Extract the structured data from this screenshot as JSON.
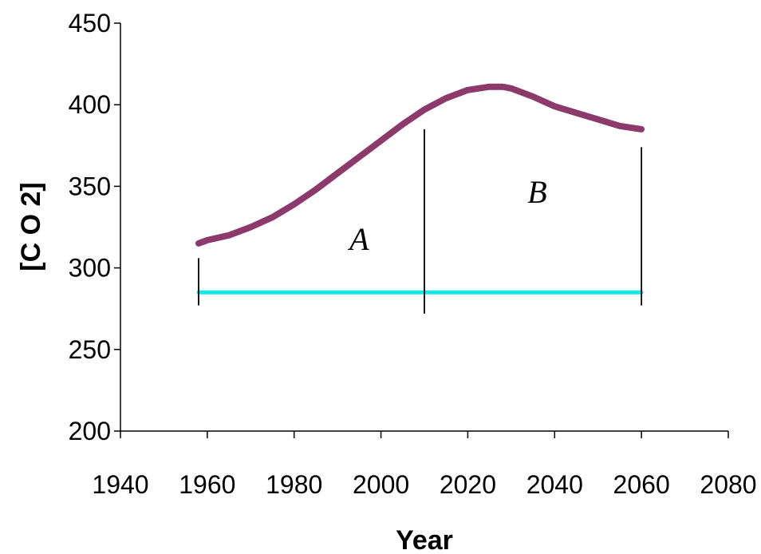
{
  "chart_data": {
    "type": "line",
    "xlabel": "Year",
    "ylabel": "[C O 2]",
    "xlim": [
      1940,
      2080
    ],
    "ylim": [
      200,
      450
    ],
    "xticks": [
      "1940",
      "1960",
      "1980",
      "2000",
      "2020",
      "2040",
      "2060",
      "2080"
    ],
    "yticks": [
      "200",
      "250",
      "300",
      "350",
      "400",
      "450"
    ],
    "grid": false,
    "series": [
      {
        "color": "#8b3a6b",
        "x": [
          1958,
          1960,
          1965,
          1970,
          1975,
          1980,
          1985,
          1990,
          1995,
          2000,
          2005,
          2010,
          2015,
          2018,
          2020,
          2025,
          2028,
          2030,
          2035,
          2040,
          2045,
          2050,
          2055,
          2060
        ],
        "y": [
          315,
          317,
          320,
          325,
          331,
          339,
          348,
          358,
          368,
          378,
          388,
          397,
          404,
          407,
          409,
          411,
          411,
          410,
          405,
          399,
          395,
          391,
          387,
          385
        ]
      },
      {
        "color": "#19e6e6",
        "x": [
          1958,
          2060
        ],
        "y": [
          285,
          285
        ]
      }
    ],
    "vertical_lines": [
      {
        "x": 1958,
        "y_range": [
          277,
          306
        ]
      },
      {
        "x": 2010,
        "y_range": [
          272,
          385
        ]
      },
      {
        "x": 2060,
        "y_range": [
          277,
          374
        ]
      }
    ],
    "annotations": [
      {
        "text": "A",
        "x": 1995,
        "y": 311
      },
      {
        "text": "B",
        "x": 2036,
        "y": 340
      }
    ]
  }
}
